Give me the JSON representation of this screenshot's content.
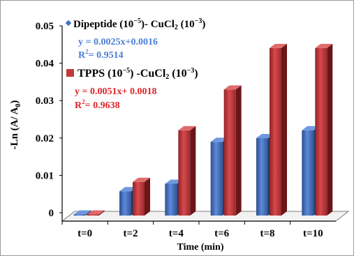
{
  "chart_data": {
    "type": "bar",
    "style": "3d-clustered-column",
    "categories": [
      "t=0",
      "t=2",
      "t=4",
      "t=6",
      "t=8",
      "t=10"
    ],
    "series": [
      {
        "name": "Dipeptide (10",
        "name_sup1": "−5",
        "name_mid": ")- CuCl",
        "name_sub": "2",
        "name_mid2": " (10",
        "name_sup2": "−3",
        "name_end": ")",
        "color": "#4472c4",
        "values": [
          0.0,
          0.0065,
          0.0085,
          0.0197,
          0.0207,
          0.0228
        ],
        "fit_equation": "y = 0.0025x+0.0016",
        "r2_prefix": "R",
        "r2_sup": "2",
        "r2_value": "= 0.9514",
        "text_color": "#4a7fd4"
      },
      {
        "name": "TPPS (10",
        "name_sup1": "−5",
        "name_mid": ") -CuCl",
        "name_sub": "2",
        "name_mid2": " (10",
        "name_sup2": "−3",
        "name_end": ")",
        "color": "#c0393b",
        "values": [
          0.0,
          0.009,
          0.0228,
          0.0337,
          0.0448,
          0.0448
        ],
        "fit_equation": "y = 0.0051x+ 0.0018",
        "r2_prefix": "R",
        "r2_sup": "2",
        "r2_value": "= 0.9638",
        "text_color": "#e0242a"
      }
    ],
    "y_ticks": [
      "0",
      "0.01",
      "0.02",
      "0.03",
      "0.04",
      "0.05"
    ],
    "ylim": [
      0,
      0.05
    ],
    "xlabel": "Time (min)",
    "ylabel_prefix": "-Ln (A/ A",
    "ylabel_sub": "0",
    "ylabel_suffix": ")",
    "grid": false,
    "legend_position": "top-left"
  }
}
